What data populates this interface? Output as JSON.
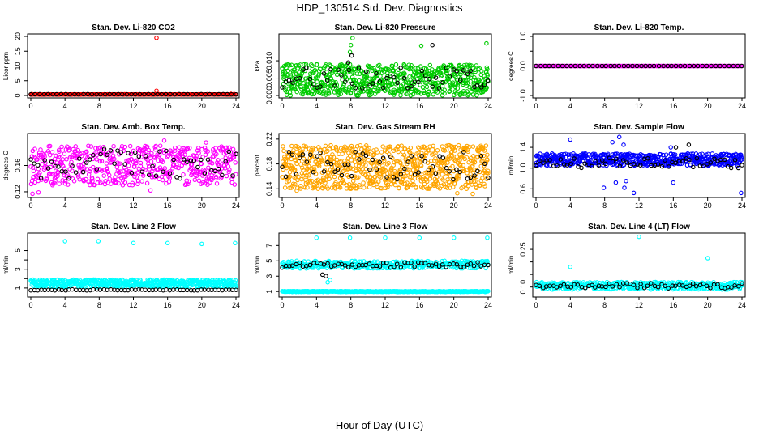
{
  "page": {
    "title": "HDP_130514  Std. Dev. Diagnostics",
    "xlabel": "Hour of Day (UTC)"
  },
  "chart_data": [
    {
      "id": "co2",
      "type": "scatter",
      "title": "Stan. Dev. Li-820 CO2",
      "ylabel": "Licor ppm",
      "xlim": [
        0,
        24
      ],
      "xticks": [
        0,
        4,
        8,
        12,
        16,
        20,
        24
      ],
      "ylim": [
        0,
        20
      ],
      "yticks": [
        0,
        5,
        10,
        15,
        20
      ],
      "ytick_labels": [
        "0",
        "5",
        "10",
        "15",
        "20"
      ],
      "series": [
        {
          "name": "all",
          "color": "#ff0000",
          "band": [
            0.3,
            0.4
          ],
          "n": 240,
          "outliers": [
            [
              14.7,
              19.5
            ],
            [
              14.7,
              1.6
            ],
            [
              0.1,
              0.5
            ],
            [
              23.6,
              0.9
            ]
          ]
        },
        {
          "name": "hourly",
          "color": "#000000",
          "band": [
            0.35,
            0.45
          ],
          "n": 48,
          "outliers": []
        }
      ]
    },
    {
      "id": "pressure",
      "type": "scatter",
      "title": "Stan. Dev. Li-820 Pressure",
      "ylabel": "kPa",
      "xlim": [
        0,
        24
      ],
      "xticks": [
        0,
        4,
        8,
        12,
        16,
        20,
        24
      ],
      "ylim": [
        0,
        0.017
      ],
      "yticks": [
        0,
        0.005,
        0.01
      ],
      "ytick_labels": [
        "0.000",
        "0.005",
        "0.010"
      ],
      "series": [
        {
          "name": "all",
          "color": "#00cc00",
          "band": [
            0.0,
            0.009
          ],
          "n": 700,
          "outliers": [
            [
              8.2,
              0.0165
            ],
            [
              8.0,
              0.0145
            ],
            [
              16.2,
              0.0143
            ],
            [
              23.8,
              0.015
            ],
            [
              7.9,
              0.0125
            ]
          ]
        },
        {
          "name": "hourly",
          "color": "#000000",
          "band": [
            0.002,
            0.008
          ],
          "n": 60,
          "outliers": [
            [
              17.5,
              0.0145
            ],
            [
              8.1,
              0.0115
            ],
            [
              7.7,
              0.0095
            ]
          ]
        }
      ]
    },
    {
      "id": "temp",
      "type": "scatter",
      "title": "Stan. Dev. Li-820 Temp.",
      "ylabel": "degrees C",
      "xlim": [
        0,
        24
      ],
      "xticks": [
        0,
        4,
        8,
        12,
        16,
        20,
        24
      ],
      "ylim": [
        -1,
        1
      ],
      "yticks": [
        -1,
        -0.5,
        0,
        0.5,
        1
      ],
      "ytick_labels": [
        "-1.0",
        "",
        "0.0",
        "",
        "1.0"
      ],
      "series": [
        {
          "name": "all",
          "color": "#ff00ff",
          "band": [
            0.0,
            0.0
          ],
          "n": 200,
          "outliers": []
        },
        {
          "name": "hourly",
          "color": "#000000",
          "band": [
            0.0,
            0.0
          ],
          "n": 48,
          "outliers": []
        }
      ]
    },
    {
      "id": "boxtemp",
      "type": "scatter",
      "title": "Stan. Dev. Amb. Box Temp.",
      "ylabel": "degrees C",
      "xlim": [
        0,
        24
      ],
      "xticks": [
        0,
        4,
        8,
        12,
        16,
        20,
        24
      ],
      "ylim": [
        0.115,
        0.205
      ],
      "yticks": [
        0.12,
        0.16
      ],
      "ytick_labels": [
        "0.12",
        "0.16"
      ],
      "series": [
        {
          "name": "all",
          "color": "#ff00ff",
          "band": [
            0.13,
            0.19
          ],
          "n": 520,
          "outliers": [
            [
              0.2,
              0.117
            ],
            [
              0.9,
              0.119
            ],
            [
              14.0,
              0.122
            ],
            [
              15.6,
              0.198
            ],
            [
              20.5,
              0.195
            ]
          ]
        },
        {
          "name": "hourly",
          "color": "#000000",
          "band": [
            0.14,
            0.185
          ],
          "n": 60,
          "outliers": []
        }
      ]
    },
    {
      "id": "rh",
      "type": "scatter",
      "title": "Stan. Dev. Gas Stream RH",
      "ylabel": "percent",
      "xlim": [
        0,
        24
      ],
      "xticks": [
        0,
        4,
        8,
        12,
        16,
        20,
        24
      ],
      "ylim": [
        0.13,
        0.225
      ],
      "yticks": [
        0.14,
        0.18,
        0.22
      ],
      "ytick_labels": [
        "0.14",
        "0.18",
        "0.22"
      ],
      "series": [
        {
          "name": "all",
          "color": "#ffa500",
          "band": [
            0.14,
            0.21
          ],
          "n": 760,
          "outliers": [
            [
              22.2,
              0.132
            ],
            [
              20.4,
              0.133
            ],
            [
              1.7,
              0.137
            ]
          ]
        },
        {
          "name": "hourly",
          "color": "#000000",
          "band": [
            0.155,
            0.2
          ],
          "n": 60,
          "outliers": []
        }
      ]
    },
    {
      "id": "sampleflow",
      "type": "scatter",
      "title": "Stan. Dev. Sample Flow",
      "ylabel": "ml/min",
      "xlim": [
        0,
        24
      ],
      "xticks": [
        0,
        4,
        8,
        12,
        16,
        20,
        24
      ],
      "ylim": [
        0.48,
        1.62
      ],
      "yticks": [
        0.6,
        1.0,
        1.4
      ],
      "ytick_labels": [
        "0.6",
        "1.0",
        "1.4"
      ],
      "series": [
        {
          "name": "all",
          "color": "#0000ff",
          "band": [
            1.05,
            1.28
          ],
          "n": 560,
          "outliers": [
            [
              10.3,
              0.62
            ],
            [
              10.5,
              0.75
            ],
            [
              11.4,
              0.52
            ],
            [
              7.9,
              0.62
            ],
            [
              23.9,
              0.52
            ],
            [
              16.0,
              0.72
            ],
            [
              9.3,
              0.72
            ],
            [
              4.0,
              1.55
            ],
            [
              10.2,
              1.45
            ],
            [
              9.7,
              1.6
            ],
            [
              8.9,
              1.5
            ],
            [
              15.7,
              1.4
            ]
          ]
        },
        {
          "name": "hourly",
          "color": "#000000",
          "band": [
            1.0,
            1.2
          ],
          "n": 60,
          "outliers": [
            [
              17.8,
              1.45
            ],
            [
              16.3,
              1.4
            ]
          ]
        }
      ]
    },
    {
      "id": "line2",
      "type": "scatter",
      "title": "Stan. Dev. Line 2 Flow",
      "ylabel": "ml/min",
      "xlim": [
        0,
        24
      ],
      "xticks": [
        0,
        4,
        8,
        12,
        16,
        20,
        24
      ],
      "ylim": [
        0.3,
        6.6
      ],
      "yticks": [
        1,
        2,
        3,
        4,
        5
      ],
      "ytick_labels": [
        "1",
        "",
        "3",
        "",
        "5"
      ],
      "series": [
        {
          "name": "all",
          "color": "#00ffff",
          "band": [
            1.1,
            1.9
          ],
          "n": 560,
          "outliers": [
            [
              4.0,
              6.0
            ],
            [
              7.9,
              6.0
            ],
            [
              12.0,
              5.8
            ],
            [
              16.0,
              5.8
            ],
            [
              20.0,
              5.7
            ],
            [
              23.9,
              5.8
            ]
          ]
        },
        {
          "name": "hourly",
          "color": "#000000",
          "band": [
            0.75,
            0.85
          ],
          "n": 60,
          "outliers": []
        }
      ]
    },
    {
      "id": "line3",
      "type": "scatter",
      "title": "Stan. Dev. Line 3 Flow",
      "ylabel": "ml/min",
      "xlim": [
        0,
        24
      ],
      "xticks": [
        0,
        4,
        8,
        12,
        16,
        20,
        24
      ],
      "ylim": [
        0.6,
        8.3
      ],
      "yticks": [
        1,
        3,
        5,
        7
      ],
      "ytick_labels": [
        "1",
        "3",
        "5",
        "7"
      ],
      "series": [
        {
          "name": "all",
          "color": "#00ffff",
          "band": [
            4.0,
            5.0
          ],
          "n": 360,
          "outliers": [
            [
              4.0,
              8.0
            ],
            [
              7.9,
              8.0
            ],
            [
              12.0,
              8.0
            ],
            [
              16.0,
              8.0
            ],
            [
              20.0,
              8.0
            ],
            [
              23.9,
              8.0
            ],
            [
              5.3,
              2.2
            ],
            [
              5.6,
              2.5
            ]
          ]
        },
        {
          "name": "baseline",
          "color": "#00ffff",
          "band": [
            0.95,
            1.05
          ],
          "n": 400,
          "outliers": []
        },
        {
          "name": "hourly",
          "color": "#000000",
          "band": [
            4.1,
            4.8
          ],
          "n": 60,
          "outliers": [
            [
              5.1,
              3.0
            ],
            [
              4.7,
              3.2
            ]
          ]
        }
      ]
    },
    {
      "id": "line4",
      "type": "scatter",
      "title": "Stan. Dev. Line 4 (LT) Flow",
      "ylabel": "ml/min",
      "xlim": [
        0,
        24
      ],
      "xticks": [
        0,
        4,
        8,
        12,
        16,
        20,
        24
      ],
      "ylim": [
        0.07,
        0.305
      ],
      "yticks": [
        0.1,
        0.15,
        0.2,
        0.25
      ],
      "ytick_labels": [
        "0.10",
        "",
        "",
        "0.25"
      ],
      "series": [
        {
          "name": "all",
          "color": "#00ffff",
          "band": [
            0.09,
            0.12
          ],
          "n": 420,
          "outliers": [
            [
              12.0,
              0.3
            ],
            [
              4.0,
              0.18
            ],
            [
              20.0,
              0.215
            ]
          ]
        },
        {
          "name": "hourly",
          "color": "#000000",
          "band": [
            0.095,
            0.115
          ],
          "n": 60,
          "outliers": []
        }
      ]
    }
  ]
}
